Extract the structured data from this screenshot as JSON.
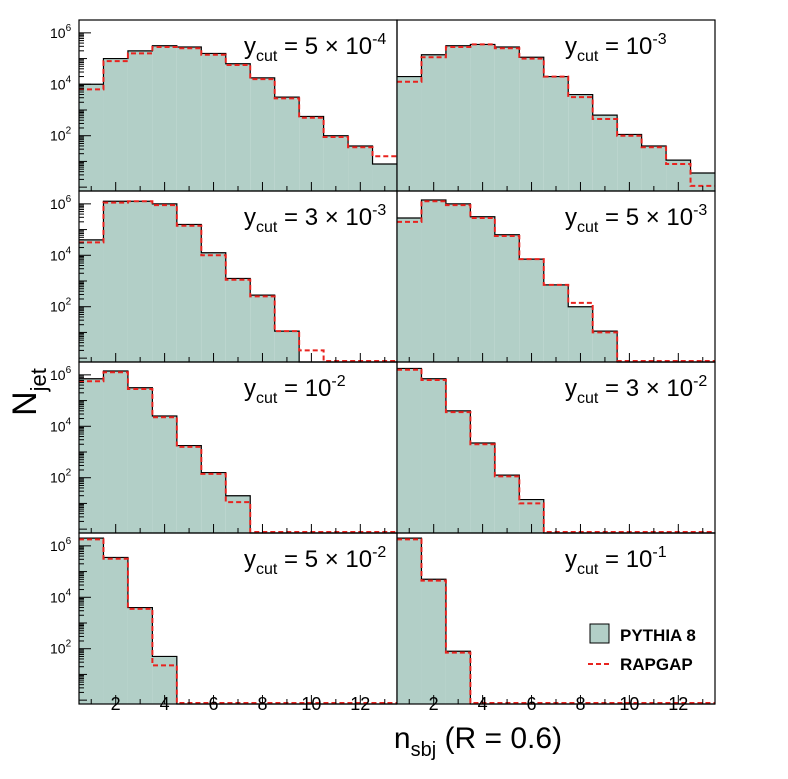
{
  "chart_data": {
    "type": "histogram-grid",
    "ylabel_main": "N",
    "ylabel_sub": "jet",
    "xlabel_main": "n",
    "xlabel_sub": "sbj",
    "xlabel_suffix": " (R = 0.6)",
    "x_range": [
      0.5,
      13.5
    ],
    "y_range_log10": [
      -0.15,
      6.5
    ],
    "x_tick_labels": [
      "2",
      "4",
      "6",
      "8",
      "10",
      "12"
    ],
    "x_tick_values": [
      2,
      4,
      6,
      8,
      10,
      12
    ],
    "y_ticks": [
      {
        "base": "10",
        "exp": "2",
        "log": 2
      },
      {
        "base": "10",
        "exp": "4",
        "log": 4
      },
      {
        "base": "10",
        "exp": "6",
        "log": 6
      }
    ],
    "series_names": [
      "PYTHIA 8",
      "RAPGAP"
    ],
    "legend": [
      {
        "label": "PYTHIA 8",
        "style": "filled",
        "color": "#b2cfc7"
      },
      {
        "label": "RAPGAP",
        "style": "dashed",
        "color": "#e8231f"
      }
    ],
    "panels": [
      {
        "label_prefix": "y",
        "label_sub": "cut",
        "label_text": " = 5 × 10",
        "label_exp": "-4",
        "pythia": [
          4.0,
          5.0,
          5.3,
          5.5,
          5.45,
          5.2,
          4.8,
          4.25,
          3.5,
          2.75,
          2.0,
          1.6,
          0.9
        ],
        "rapgap": [
          3.8,
          4.9,
          5.2,
          5.45,
          5.4,
          5.15,
          4.75,
          4.2,
          3.45,
          2.7,
          1.95,
          1.55,
          1.2
        ]
      },
      {
        "label_prefix": "y",
        "label_sub": "cut",
        "label_text": " = 10",
        "label_exp": "-3",
        "pythia": [
          4.3,
          5.15,
          5.5,
          5.55,
          5.45,
          5.05,
          4.3,
          3.6,
          2.8,
          2.05,
          1.6,
          1.05,
          0.55
        ],
        "rapgap": [
          4.1,
          5.05,
          5.45,
          5.55,
          5.4,
          5.0,
          4.3,
          3.5,
          2.65,
          2.0,
          1.55,
          0.9,
          0.05
        ]
      },
      {
        "label_prefix": "y",
        "label_sub": "cut",
        "label_text": " = 3 × 10",
        "label_exp": "-3",
        "pythia": [
          4.6,
          6.1,
          6.1,
          6.0,
          5.2,
          4.1,
          3.1,
          2.45,
          1.05,
          -1,
          -1,
          -1,
          -1
        ],
        "rapgap": [
          4.5,
          6.05,
          6.1,
          5.95,
          5.15,
          4.0,
          3.05,
          2.4,
          1.05,
          0.3,
          -1,
          -1,
          -1
        ]
      },
      {
        "label_prefix": "y",
        "label_sub": "cut",
        "label_text": " = 5 × 10",
        "label_exp": "-3",
        "pythia": [
          5.45,
          6.15,
          6.0,
          5.5,
          4.8,
          3.85,
          2.85,
          2.0,
          1.05,
          -1,
          -1,
          -1,
          -1
        ],
        "rapgap": [
          5.3,
          6.1,
          5.95,
          5.45,
          4.75,
          3.85,
          2.85,
          2.15,
          1.0,
          -1,
          -1,
          -1,
          -1
        ]
      },
      {
        "label_prefix": "y",
        "label_sub": "cut",
        "label_text": " = 10",
        "label_exp": "-2",
        "pythia": [
          5.85,
          6.15,
          5.5,
          4.4,
          3.25,
          2.2,
          1.3,
          -1,
          -1,
          -1,
          -1,
          -1,
          -1
        ],
        "rapgap": [
          5.75,
          6.1,
          5.45,
          4.35,
          3.2,
          2.15,
          1.05,
          -1,
          -1,
          -1,
          -1,
          -1,
          -1
        ]
      },
      {
        "label_prefix": "y",
        "label_sub": "cut",
        "label_text": " = 3 × 10",
        "label_exp": "-2",
        "pythia": [
          6.25,
          5.85,
          4.6,
          3.35,
          2.1,
          1.15,
          -1,
          -1,
          -1,
          -1,
          -1,
          -1,
          -1
        ],
        "rapgap": [
          6.2,
          5.8,
          4.55,
          3.3,
          2.05,
          1.0,
          -1,
          -1,
          -1,
          -1,
          -1,
          -1,
          -1
        ]
      },
      {
        "label_prefix": "y",
        "label_sub": "cut",
        "label_text": " = 5 × 10",
        "label_exp": "-2",
        "pythia": [
          6.3,
          5.55,
          3.6,
          1.7,
          -1,
          -1,
          -1,
          -1,
          -1,
          -1,
          -1,
          -1,
          -1
        ],
        "rapgap": [
          6.25,
          5.5,
          3.55,
          1.35,
          -1,
          -1,
          -1,
          -1,
          -1,
          -1,
          -1,
          -1,
          -1
        ]
      },
      {
        "label_prefix": "y",
        "label_sub": "cut",
        "label_text": " = 10",
        "label_exp": "-1",
        "pythia": [
          6.3,
          4.7,
          1.9,
          -1,
          -1,
          -1,
          -1,
          -1,
          -1,
          -1,
          -1,
          -1,
          -1
        ],
        "rapgap": [
          6.25,
          4.65,
          1.85,
          -1,
          -1,
          -1,
          -1,
          -1,
          -1,
          -1,
          -1,
          -1,
          -1
        ]
      }
    ]
  }
}
